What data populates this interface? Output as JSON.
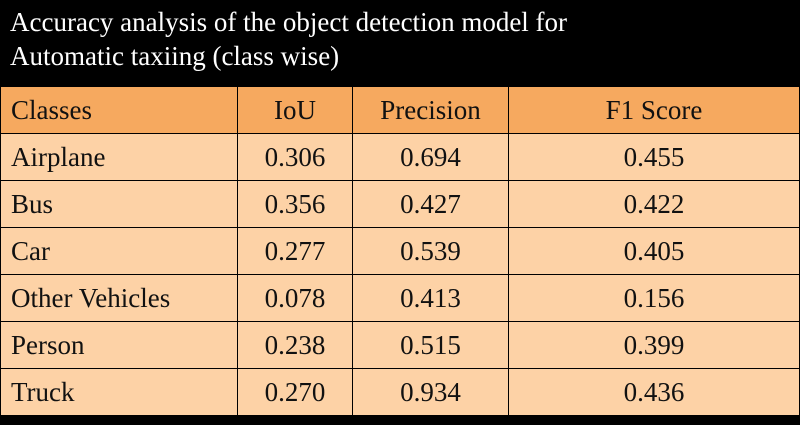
{
  "title_lines": [
    "Accuracy analysis of the object detection model for",
    "Automatic taxiing (class wise)"
  ],
  "columns": [
    "Classes",
    "IoU",
    "Precision",
    "F1 Score"
  ],
  "rows": [
    [
      "Airplane",
      "0.306",
      "0.694",
      "0.455"
    ],
    [
      "Bus",
      "0.356",
      "0.427",
      "0.422"
    ],
    [
      "Car",
      "0.277",
      "0.539",
      "0.405"
    ],
    [
      "Other Vehicles",
      "0.078",
      "0.413",
      "0.156"
    ],
    [
      "Person",
      "0.238",
      "0.515",
      "0.399"
    ],
    [
      "Truck",
      "0.270",
      "0.934",
      "0.436"
    ]
  ],
  "colors": {
    "title_background": "#000000",
    "title_text": "#ffffff",
    "header_fill": "#f6a95f",
    "row_fill": "#fdd2a6",
    "grid_line": "#000000"
  }
}
